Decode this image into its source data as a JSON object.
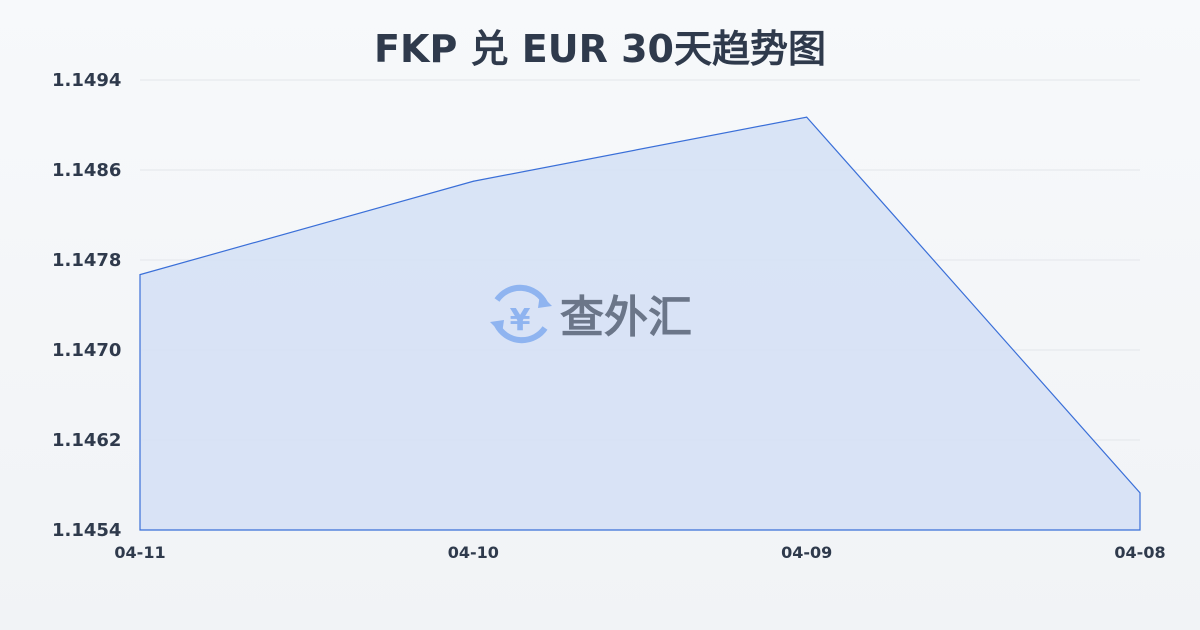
{
  "chart_data": {
    "type": "area",
    "title": "FKP 兑 EUR 30天趋势图",
    "xlabel": "",
    "ylabel": "",
    "categories": [
      "04-11",
      "04-10",
      "04-09",
      "04-08"
    ],
    "values": [
      1.14767,
      1.1485,
      1.14907,
      1.14573
    ],
    "yticks": [
      "1.1494",
      "1.1486",
      "1.1478",
      "1.1470",
      "1.1462",
      "1.1454"
    ],
    "ylim": [
      1.1454,
      1.1494
    ],
    "grid": true,
    "colors": {
      "line": "#3a6fd8",
      "fill": "#d6e1f5",
      "grid": "#e3e6ea",
      "text": "#2f3a4c"
    }
  },
  "watermark": {
    "text": "查外汇",
    "icon": "yen-exchange-icon",
    "icon_color": "#8fb4f0"
  }
}
